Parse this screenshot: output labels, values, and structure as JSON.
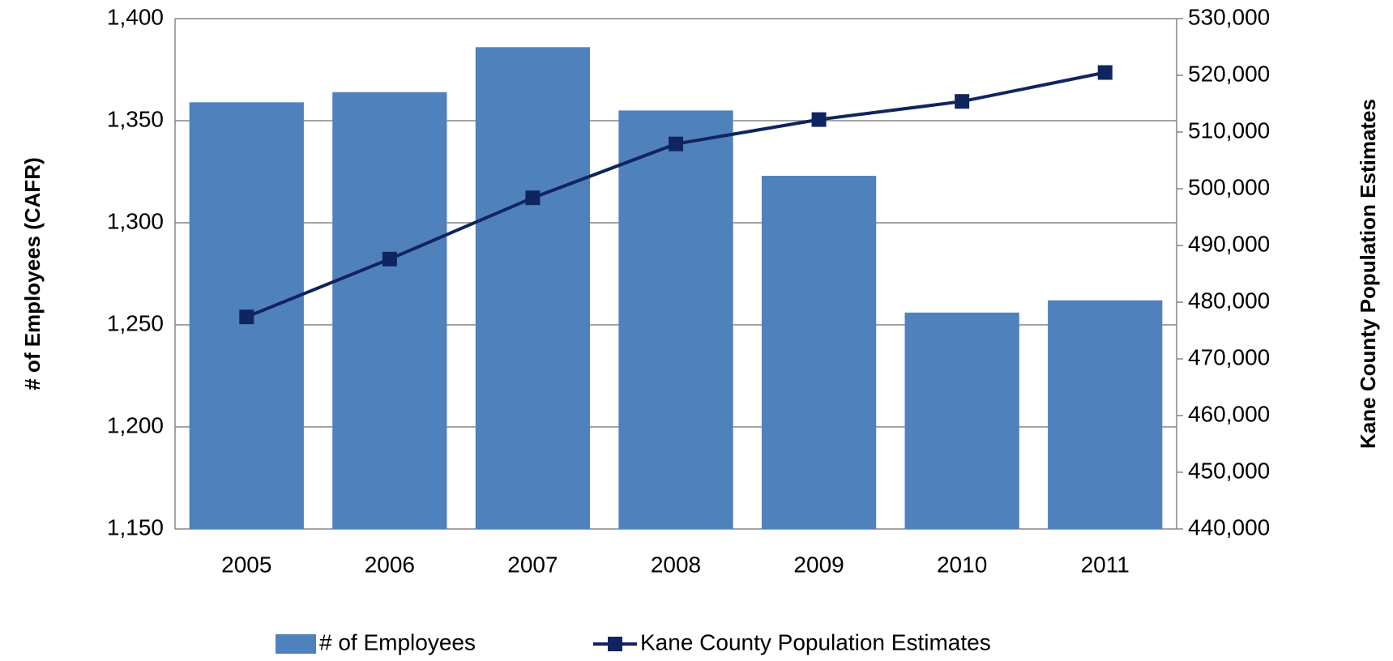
{
  "chart_data": {
    "type": "bar_line",
    "categories": [
      "2005",
      "2006",
      "2007",
      "2008",
      "2009",
      "2010",
      "2011"
    ],
    "series": [
      {
        "name": "# of Employees",
        "color": "#4f81bd",
        "type": "bar",
        "values": [
          1359,
          1364,
          1386,
          1355,
          1323,
          1256,
          1262
        ]
      },
      {
        "name": "Kane County Population Estimates",
        "color": "#10255f",
        "type": "line",
        "axis": "y2",
        "values": [
          477400,
          487600,
          498400,
          507900,
          512200,
          515400,
          520500
        ]
      }
    ],
    "y_label": "# of Employees (CAFR)",
    "y2_label": "Kane County Population Estimates",
    "ylim": [
      1150,
      1400
    ],
    "yticks": [
      {
        "value": 1150,
        "label": "1,150"
      },
      {
        "value": 1200,
        "label": "1,200"
      },
      {
        "value": 1250,
        "label": "1,250"
      },
      {
        "value": 1300,
        "label": "1,300"
      },
      {
        "value": 1350,
        "label": "1,350"
      },
      {
        "value": 1400,
        "label": "1,400"
      }
    ],
    "y2lim": [
      440000,
      530000
    ],
    "y2ticks": [
      {
        "value": 440000,
        "label": "440,000"
      },
      {
        "value": 450000,
        "label": "450,000"
      },
      {
        "value": 460000,
        "label": "460,000"
      },
      {
        "value": 470000,
        "label": "470,000"
      },
      {
        "value": 480000,
        "label": "480,000"
      },
      {
        "value": 490000,
        "label": "490,000"
      },
      {
        "value": 500000,
        "label": "500,000"
      },
      {
        "value": 510000,
        "label": "510,000"
      },
      {
        "value": 520000,
        "label": "520,000"
      },
      {
        "value": 530000,
        "label": "530,000"
      }
    ],
    "grid": true,
    "legend": "bottom"
  }
}
